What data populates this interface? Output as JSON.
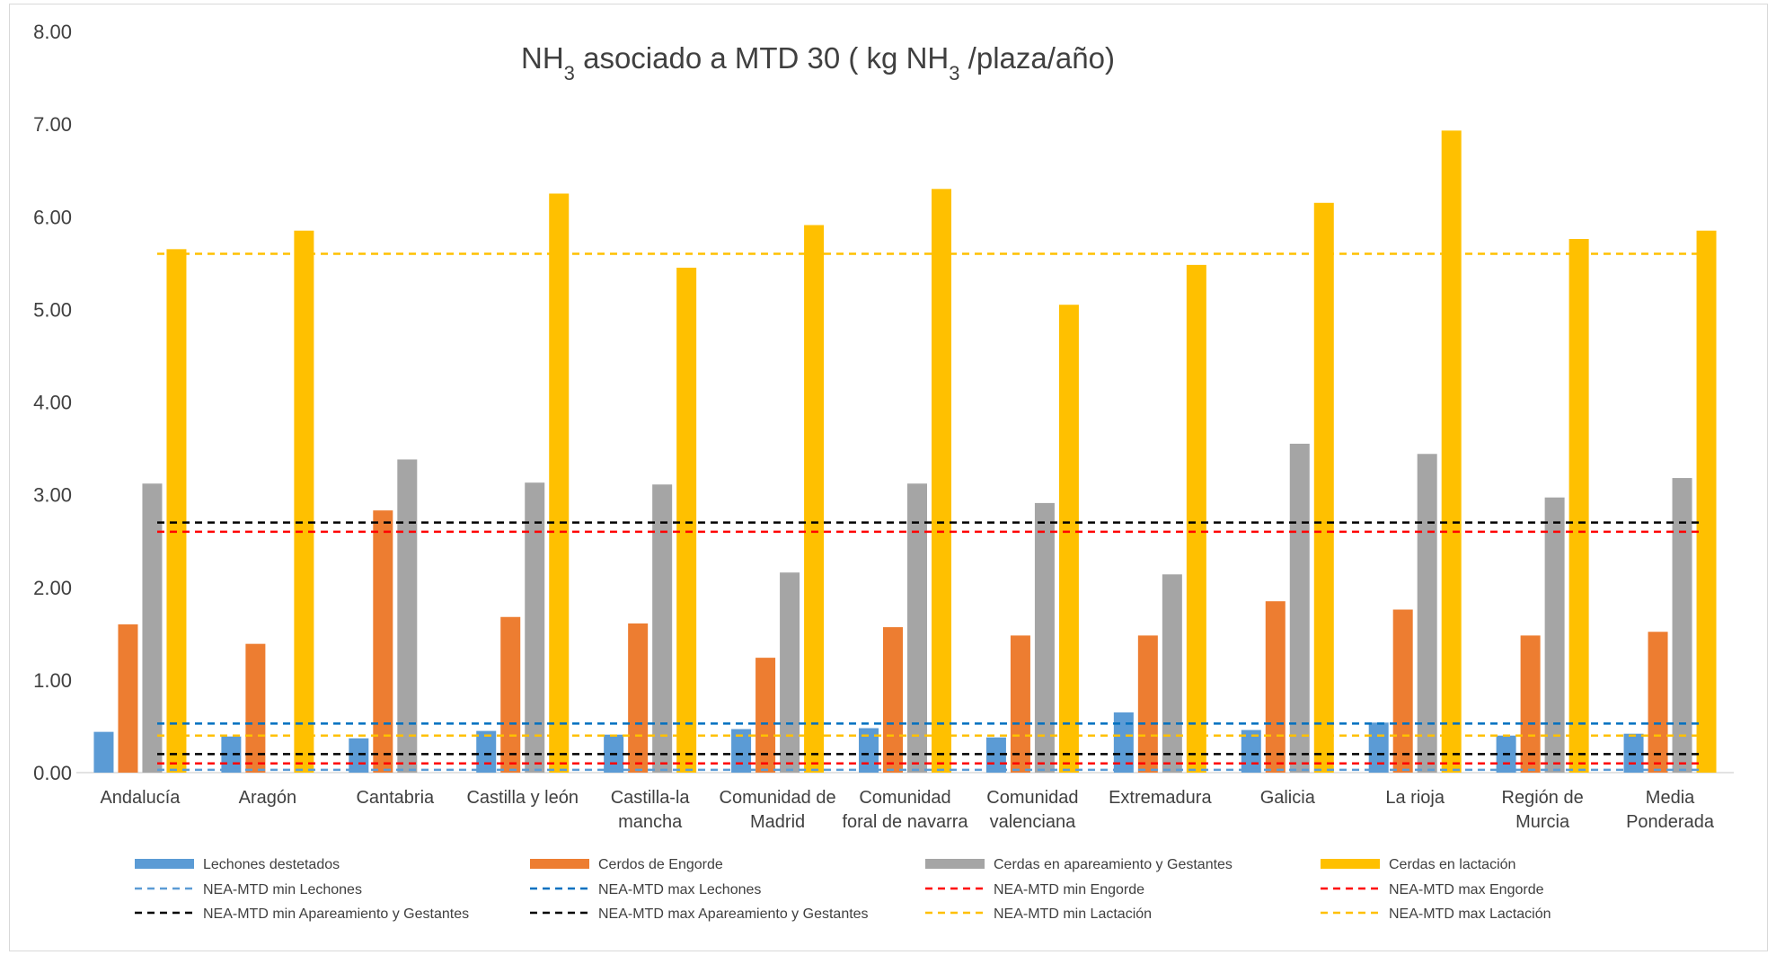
{
  "chart_data": {
    "type": "bar",
    "title": {
      "parts": [
        {
          "text": "NH",
          "sub": false
        },
        {
          "text": "3",
          "sub": true
        },
        {
          "text": " asociado a  MTD 30 ( kg NH",
          "sub": false
        },
        {
          "text": "3",
          "sub": true
        },
        {
          "text": " /plaza/año)",
          "sub": false
        }
      ]
    },
    "ylim": [
      0,
      8
    ],
    "yticks": [
      "0.00",
      "1.00",
      "2.00",
      "3.00",
      "4.00",
      "5.00",
      "6.00",
      "7.00",
      "8.00"
    ],
    "grid": false,
    "legend_position": "bottom",
    "categories": [
      [
        "Andalucía"
      ],
      [
        "Aragón"
      ],
      [
        "Cantabria"
      ],
      [
        "Castilla y león"
      ],
      [
        "Castilla-la",
        "mancha"
      ],
      [
        "Comunidad de",
        "Madrid"
      ],
      [
        "Comunidad",
        "foral de navarra"
      ],
      [
        "Comunidad",
        "valenciana"
      ],
      [
        "Extremadura"
      ],
      [
        "Galicia"
      ],
      [
        "La rioja"
      ],
      [
        "Región de",
        "Murcia"
      ],
      [
        "Media",
        "Ponderada"
      ]
    ],
    "series": [
      {
        "name": "Lechones destetados",
        "color": "#5B9BD5",
        "values": [
          0.44,
          0.39,
          0.37,
          0.45,
          0.41,
          0.47,
          0.48,
          0.38,
          0.65,
          0.46,
          0.54,
          0.4,
          0.42
        ]
      },
      {
        "name": "Cerdos de Engorde",
        "color": "#ED7D31",
        "values": [
          1.6,
          1.39,
          2.83,
          1.68,
          1.61,
          1.24,
          1.57,
          1.48,
          1.48,
          1.85,
          1.76,
          1.48,
          1.52
        ]
      },
      {
        "name": "Cerdas en apareamiento y  Gestantes",
        "color": "#A5A5A5",
        "values": [
          3.12,
          null,
          3.38,
          3.13,
          3.11,
          2.16,
          3.12,
          2.91,
          2.14,
          3.55,
          3.44,
          2.97,
          3.18
        ]
      },
      {
        "name": "Cerdas en lactación",
        "color": "#FFC000",
        "values": [
          5.65,
          5.85,
          null,
          6.25,
          5.45,
          5.91,
          6.3,
          5.05,
          5.48,
          6.15,
          6.93,
          5.76,
          5.85
        ]
      }
    ],
    "reference_lines": [
      {
        "name": "NEA-MTD min Lechones",
        "color": "#5B9BD5",
        "value": 0.03
      },
      {
        "name": "NEA-MTD max  Lechones",
        "color": "#0070C0",
        "value": 0.53
      },
      {
        "name": "NEA-MTD min Engorde",
        "color": "#FF0000",
        "value": 0.1
      },
      {
        "name": "NEA-MTD max Engorde",
        "color": "#FF0000",
        "value": 2.6
      },
      {
        "name": "NEA-MTD min Apareamiento y Gestantes",
        "color": "#000000",
        "value": 0.2
      },
      {
        "name": "NEA-MTD max Apareamiento y Gestantes",
        "color": "#000000",
        "value": 2.7
      },
      {
        "name": "NEA-MTD min Lactación",
        "color": "#FFC000",
        "value": 0.4
      },
      {
        "name": "NEA-MTD max Lactación",
        "color": "#FFC000",
        "value": 5.6
      }
    ]
  }
}
